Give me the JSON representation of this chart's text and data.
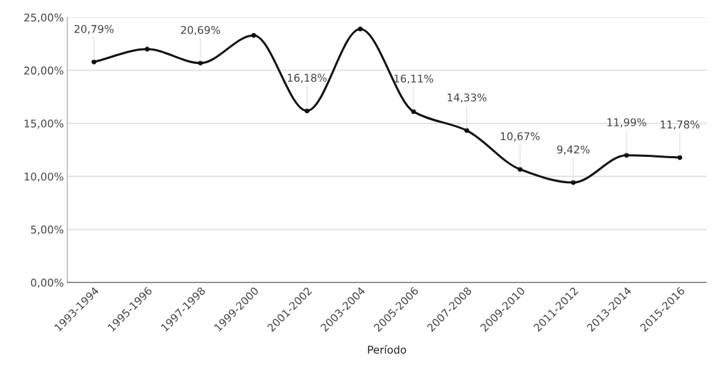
{
  "chart_data": {
    "type": "line",
    "xlabel": "Período",
    "categories": [
      "1993-1994",
      "1995-1996",
      "1997-1998",
      "1999-2000",
      "2001-2002",
      "2003-2004",
      "2005-2006",
      "2007-2008",
      "2009-2010",
      "2011-2012",
      "2013-2014",
      "2015-2016"
    ],
    "series": [
      {
        "color": "#111111",
        "values": [
          20.79,
          22.0,
          20.69,
          23.3,
          16.18,
          23.9,
          16.11,
          14.33,
          10.67,
          9.42,
          11.99,
          11.78
        ],
        "value_labels": [
          "20,79%",
          null,
          "20,69%",
          null,
          "16,18%",
          null,
          "16,11%",
          "14,33%",
          "10,67%",
          "9,42%",
          "11,99%",
          "11,78%"
        ]
      }
    ],
    "ylim": [
      0,
      25
    ],
    "yticks": [
      {
        "value": 0,
        "label": "0,00%"
      },
      {
        "value": 5,
        "label": "5,00%"
      },
      {
        "value": 10,
        "label": "10,00%"
      },
      {
        "value": 15,
        "label": "15,00%"
      },
      {
        "value": 20,
        "label": "20,00%"
      },
      {
        "value": 25,
        "label": "25,00%"
      }
    ],
    "grid": "y",
    "marker": "circle",
    "line_style": "solid",
    "legend": false
  }
}
